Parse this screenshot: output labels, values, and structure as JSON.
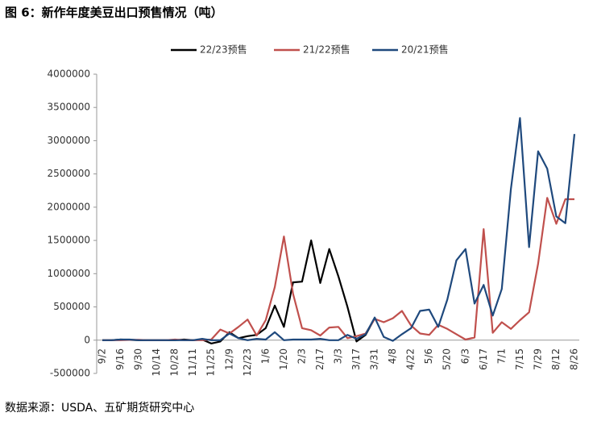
{
  "chart_data": {
    "type": "line",
    "title": "图 6：新作年度美豆出口预售情况（吨）",
    "source": "数据来源：USDA、五矿期货研究中心",
    "categories": [
      "9/2",
      null,
      "9/16",
      null,
      "9/30",
      null,
      "10/14",
      null,
      "10/28",
      null,
      "11/11",
      null,
      "11/25",
      null,
      "12/9",
      null,
      "12/23",
      null,
      "1/6",
      null,
      "1/20",
      null,
      "2/3",
      null,
      "2/17",
      null,
      "3/3",
      null,
      "3/17",
      null,
      "3/31",
      null,
      "4/8",
      null,
      "4/22",
      null,
      "5/6",
      null,
      "5/20",
      null,
      "6/3",
      null,
      "6/17",
      null,
      "7/1",
      null,
      "7/15",
      null,
      "7/29",
      null,
      "8/12",
      null,
      "8/26"
    ],
    "series": [
      {
        "name": "22/23预售",
        "color": "#000000",
        "values": [
          0,
          0,
          10000,
          5000,
          0,
          0,
          0,
          0,
          0,
          10000,
          0,
          10000,
          -50000,
          -20000,
          120000,
          30000,
          60000,
          80000,
          180000,
          520000,
          200000,
          870000,
          880000,
          1500000,
          860000,
          1370000,
          960000,
          500000,
          -20000,
          80000,
          330000,
          null,
          null,
          null,
          null,
          null,
          null,
          null,
          null,
          null,
          null,
          null,
          null,
          null,
          null,
          null,
          null,
          null,
          null,
          null,
          null,
          null,
          null
        ]
      },
      {
        "name": "21/22预售",
        "color": "#c0504d",
        "values": [
          0,
          0,
          0,
          5000,
          5000,
          0,
          0,
          0,
          10000,
          0,
          0,
          0,
          10000,
          160000,
          100000,
          200000,
          310000,
          70000,
          300000,
          800000,
          1560000,
          700000,
          180000,
          150000,
          70000,
          190000,
          200000,
          30000,
          60000,
          100000,
          320000,
          270000,
          330000,
          440000,
          220000,
          100000,
          80000,
          230000,
          170000,
          90000,
          10000,
          40000,
          1670000,
          110000,
          270000,
          170000,
          300000,
          420000,
          1150000,
          2140000,
          1750000,
          2120000,
          2120000
        ]
      },
      {
        "name": "20/21预售",
        "color": "#1f497d",
        "values": [
          0,
          0,
          10000,
          10000,
          0,
          0,
          0,
          0,
          0,
          0,
          0,
          20000,
          0,
          0,
          100000,
          30000,
          0,
          20000,
          10000,
          120000,
          0,
          10000,
          10000,
          10000,
          20000,
          0,
          0,
          80000,
          20000,
          90000,
          340000,
          50000,
          -10000,
          90000,
          180000,
          440000,
          460000,
          200000,
          610000,
          1200000,
          1370000,
          550000,
          830000,
          370000,
          770000,
          2270000,
          3340000,
          1400000,
          2840000,
          2580000,
          1860000,
          1760000,
          3100000
        ]
      }
    ],
    "ylim": [
      -500000,
      4000000
    ],
    "yticks": [
      -500000,
      0,
      500000,
      1000000,
      1500000,
      2000000,
      2500000,
      3000000,
      3500000,
      4000000
    ],
    "legend": "top"
  }
}
